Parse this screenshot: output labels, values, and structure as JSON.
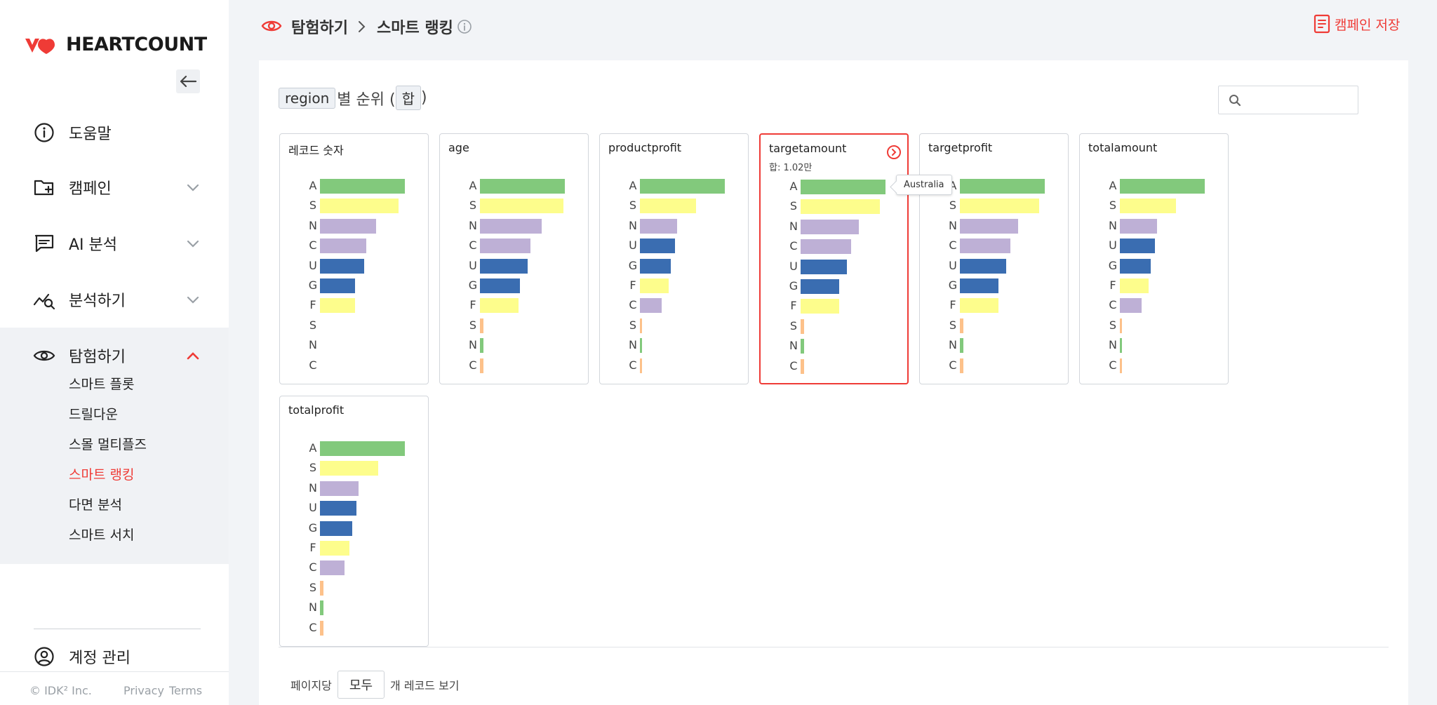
{
  "sidebar": {
    "brand": "HEARTCOUNT",
    "menu": [
      {
        "label": "도움말",
        "icon": "info-circle-icon"
      },
      {
        "label": "캠페인",
        "icon": "folder-plus-icon"
      },
      {
        "label": "AI 분석",
        "icon": "chat-icon"
      },
      {
        "label": "분석하기",
        "icon": "chart-search-icon"
      },
      {
        "label": "탐험하기",
        "icon": "eye-icon"
      }
    ],
    "explore_items": [
      "스마트 플롯",
      "드릴다운",
      "스몰 멀티플즈",
      "스마트 랭킹",
      "다면 분석",
      "스마트 서치"
    ],
    "active_item": "스마트 랭킹",
    "account_label": "계정 관리",
    "footer": {
      "copyright": "© IDK² Inc.",
      "privacy": "Privacy",
      "terms": "Terms"
    }
  },
  "header": {
    "section": "탐험하기",
    "page": "스마트 랭킹",
    "save_label": "캠페인 저장"
  },
  "ranking": {
    "dimension_chip": "region",
    "title_middle": "별 순위 (",
    "agg_chip": "합",
    "title_end": ")",
    "search_placeholder": ""
  },
  "colors": {
    "accent": "#ef3b36",
    "green": "#82c97c",
    "yellow": "#fdfd8c",
    "purple": "#beb0d6",
    "blue": "#3a6db1",
    "orange": "#fdc18a"
  },
  "tooltip": "Australia",
  "pager": {
    "prefix": "페이지당",
    "value": "모두",
    "suffix": "개 레코드 보기"
  },
  "chart_data": [
    {
      "type": "bar",
      "title": "레코드 숫자",
      "categories": [
        "A",
        "S",
        "N",
        "C",
        "U",
        "G",
        "F",
        "S",
        "N",
        "C"
      ],
      "values": [
        0.77,
        0.71,
        0.51,
        0.42,
        0.4,
        0.32,
        0.32,
        0,
        0,
        0
      ],
      "colors": [
        "green",
        "yellow",
        "purple",
        "purple",
        "blue",
        "blue",
        "yellow",
        "orange",
        "green",
        "orange"
      ]
    },
    {
      "type": "bar",
      "title": "age",
      "categories": [
        "A",
        "S",
        "N",
        "C",
        "U",
        "G",
        "F",
        "S",
        "N",
        "C"
      ],
      "values": [
        0.77,
        0.76,
        0.56,
        0.46,
        0.43,
        0.36,
        0.35,
        0.03,
        0.03,
        0.03
      ],
      "colors": [
        "green",
        "yellow",
        "purple",
        "purple",
        "blue",
        "blue",
        "yellow",
        "orange",
        "green",
        "orange"
      ]
    },
    {
      "type": "bar",
      "title": "productprofit",
      "categories": [
        "A",
        "S",
        "N",
        "U",
        "G",
        "F",
        "C",
        "S",
        "N",
        "C"
      ],
      "values": [
        0.77,
        0.51,
        0.34,
        0.32,
        0.28,
        0.26,
        0.2,
        0.02,
        0.02,
        0.02
      ],
      "colors": [
        "green",
        "yellow",
        "purple",
        "blue",
        "blue",
        "yellow",
        "purple",
        "orange",
        "green",
        "orange"
      ]
    },
    {
      "type": "bar",
      "title": "targetamount",
      "subtitle": "합: 1.02만",
      "categories": [
        "A",
        "S",
        "N",
        "C",
        "U",
        "G",
        "F",
        "S",
        "N",
        "C"
      ],
      "values": [
        0.77,
        0.72,
        0.53,
        0.46,
        0.42,
        0.35,
        0.35,
        0.03,
        0.03,
        0.03
      ],
      "colors": [
        "green",
        "yellow",
        "purple",
        "purple",
        "blue",
        "blue",
        "yellow",
        "orange",
        "green",
        "orange"
      ]
    },
    {
      "type": "bar",
      "title": "targetprofit",
      "categories": [
        "A",
        "S",
        "N",
        "C",
        "U",
        "G",
        "F",
        "S",
        "N",
        "C"
      ],
      "values": [
        0.77,
        0.72,
        0.53,
        0.46,
        0.42,
        0.35,
        0.35,
        0.03,
        0.03,
        0.03
      ],
      "colors": [
        "green",
        "yellow",
        "purple",
        "purple",
        "blue",
        "blue",
        "yellow",
        "orange",
        "green",
        "orange"
      ]
    },
    {
      "type": "bar",
      "title": "totalamount",
      "categories": [
        "A",
        "S",
        "N",
        "U",
        "G",
        "F",
        "C",
        "S",
        "N",
        "C"
      ],
      "values": [
        0.77,
        0.51,
        0.34,
        0.32,
        0.28,
        0.26,
        0.2,
        0.02,
        0.02,
        0.02
      ],
      "colors": [
        "green",
        "yellow",
        "purple",
        "blue",
        "blue",
        "yellow",
        "purple",
        "orange",
        "green",
        "orange"
      ]
    },
    {
      "type": "bar",
      "title": "totalprofit",
      "categories": [
        "A",
        "S",
        "N",
        "U",
        "G",
        "F",
        "C",
        "S",
        "N",
        "C"
      ],
      "values": [
        0.77,
        0.53,
        0.35,
        0.33,
        0.29,
        0.27,
        0.22,
        0.03,
        0.03,
        0.03
      ],
      "colors": [
        "green",
        "yellow",
        "purple",
        "blue",
        "blue",
        "yellow",
        "purple",
        "orange",
        "green",
        "orange"
      ]
    }
  ]
}
